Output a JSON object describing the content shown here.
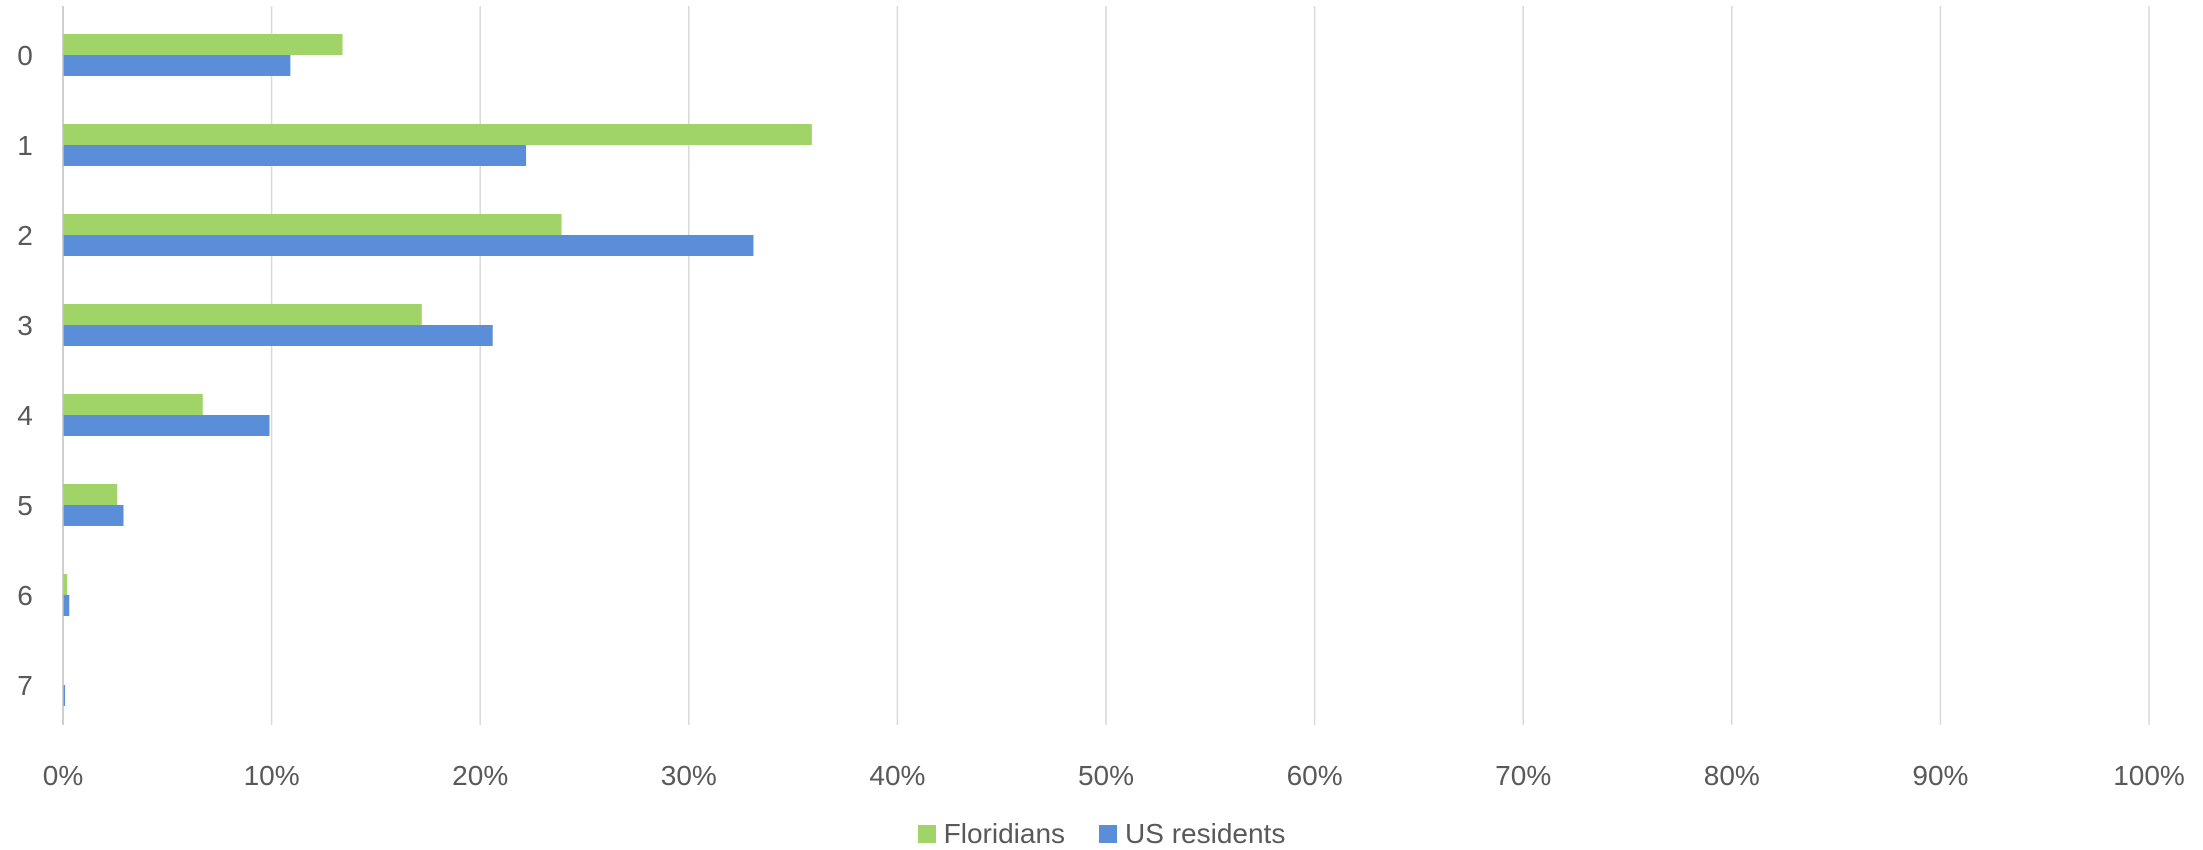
{
  "chart_data": {
    "type": "bar",
    "orientation": "horizontal",
    "categories": [
      "0",
      "1",
      "2",
      "3",
      "4",
      "5",
      "6",
      "7"
    ],
    "series": [
      {
        "name": "Floridians",
        "color": "#a0d468",
        "values": [
          13.4,
          35.9,
          23.9,
          17.2,
          6.7,
          2.6,
          0.2,
          0.0
        ]
      },
      {
        "name": "US residents",
        "color": "#5a8ed8",
        "values": [
          10.9,
          22.2,
          33.1,
          20.6,
          9.9,
          2.9,
          0.3,
          0.1
        ]
      }
    ],
    "x_ticks": [
      "0%",
      "10%",
      "20%",
      "30%",
      "40%",
      "50%",
      "60%",
      "70%",
      "80%",
      "90%",
      "100%"
    ],
    "xlim": [
      0,
      100
    ],
    "grid": true,
    "legend_position": "bottom",
    "gridline_color": "#d9d9d9",
    "axis_color": "#bfbfbf"
  }
}
